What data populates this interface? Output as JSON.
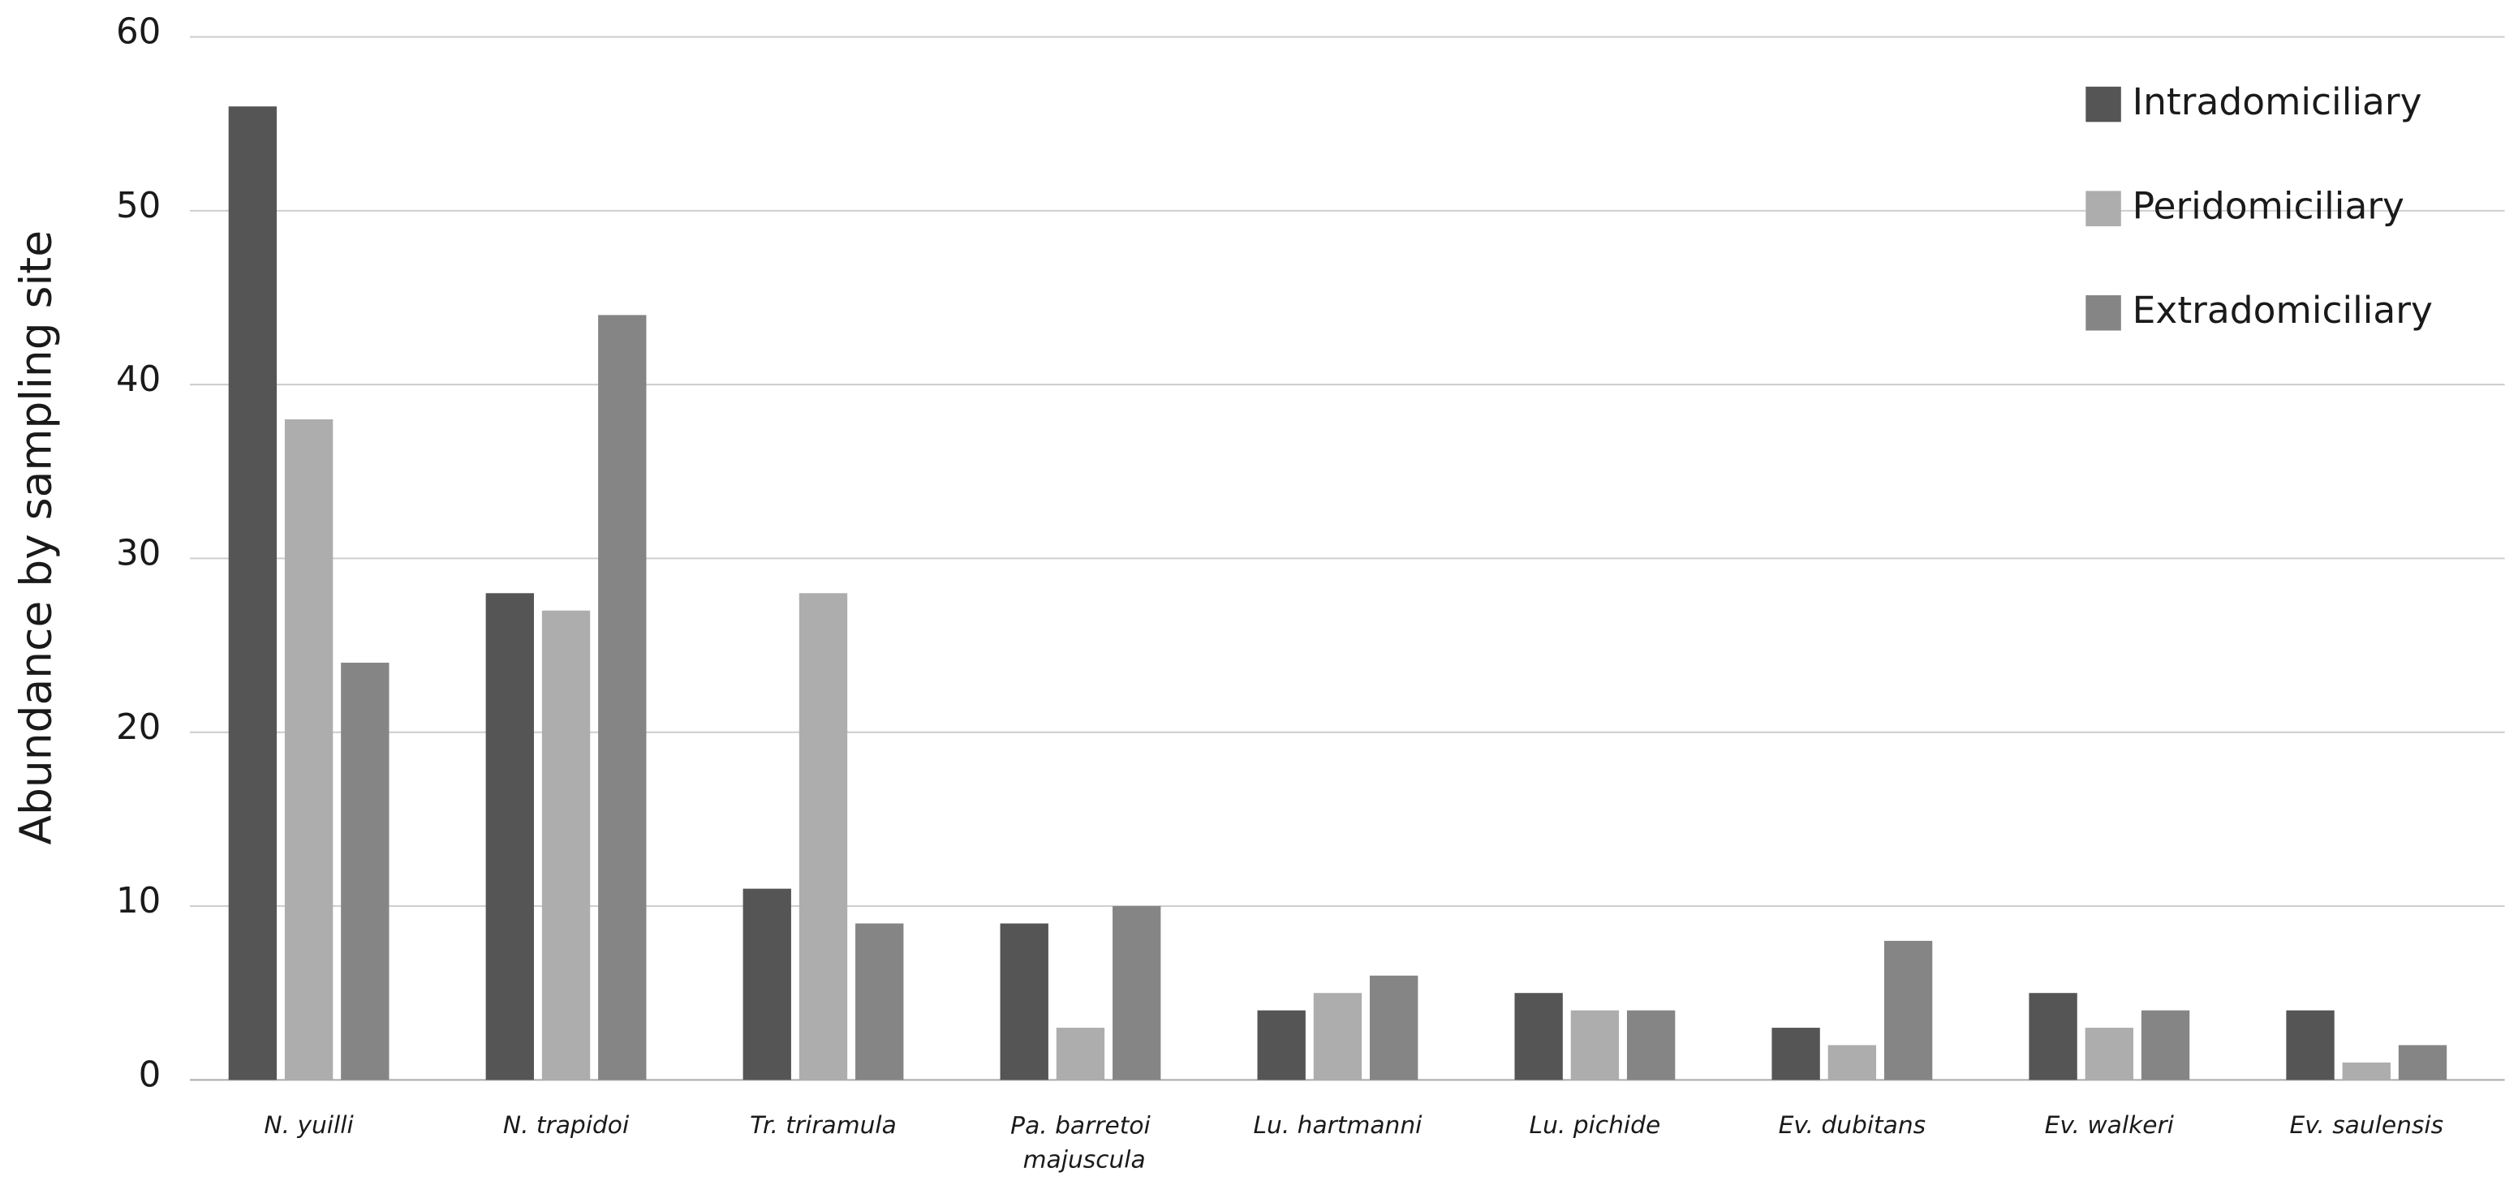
{
  "chart_data": {
    "type": "bar",
    "y_label": "Abundance by sampling site",
    "categories": [
      "N. yuilli",
      "N. trapidoi",
      "Tr. triramula",
      "Pa. barretoi majuscula",
      "Lu. hartmanni",
      "Lu. pichide",
      "Ev. dubitans",
      "Ev. walkeri",
      "Ev. saulensis"
    ],
    "series": [
      {
        "name": "Intradomiciliary",
        "color": "#555555",
        "values": [
          56,
          28,
          11,
          9,
          4,
          5,
          3,
          5,
          4
        ]
      },
      {
        "name": "Peridomiciliary",
        "color": "#adadad",
        "values": [
          38,
          27,
          28,
          3,
          5,
          4,
          2,
          3,
          1
        ]
      },
      {
        "name": "Extradomiciliary",
        "color": "#858585",
        "values": [
          24,
          44,
          9,
          10,
          6,
          4,
          8,
          4,
          2
        ]
      }
    ],
    "ylim": [
      0,
      60
    ],
    "yticks": [
      0,
      10,
      20,
      30,
      40,
      50,
      60
    ],
    "grid": true,
    "legend": "top-right"
  }
}
